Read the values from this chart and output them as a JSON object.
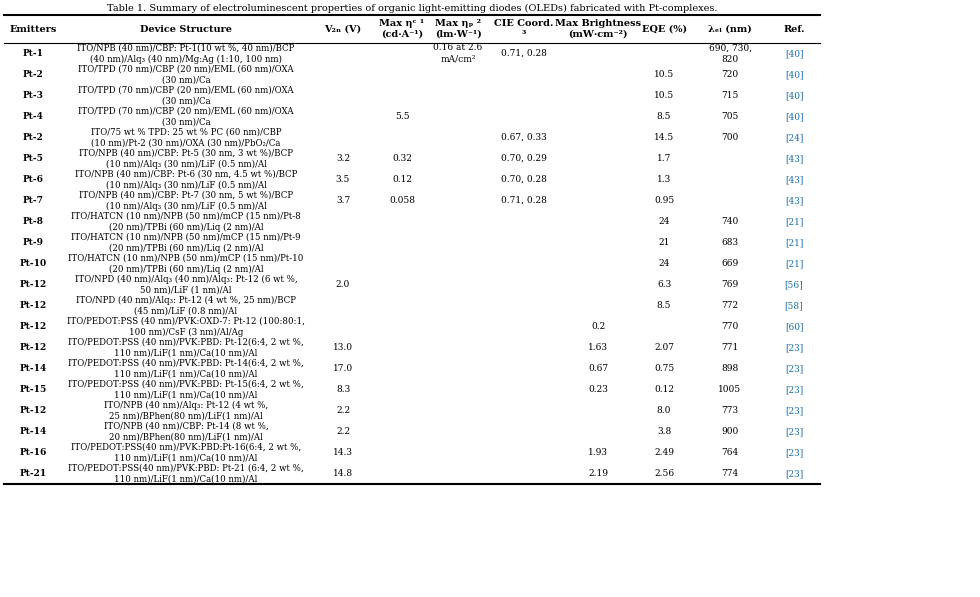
{
  "title": "Table 1. Summary of electroluminescent properties of organic light-emitting diodes (OLEDs) fabricated with Pt-complexes.",
  "rows": [
    {
      "emitter": "Pt-1",
      "device": "ITO/NPB (40 nm)/CBP: Pt-1(10 wt %, 40 nm)/BCP\n(40 nm)/Alq₃ (40 nm)/Mg:Ag (1:10, 100 nm)",
      "device_bold": "Pt-1",
      "von": "",
      "eta_c": "",
      "eta_p": "0.16 at 2.6\nmA/cm²",
      "cie": "0.71, 0.28",
      "brightness": "",
      "eqe": "",
      "lambda": "690, 730,\n820",
      "ref": "[40]"
    },
    {
      "emitter": "Pt-2",
      "device": "ITO/TPD (70 nm)/CBP (20 nm)/EML (60 nm)/OXA\n(30 nm)/Ca",
      "device_bold": "",
      "von": "",
      "eta_c": "",
      "eta_p": "",
      "cie": "",
      "brightness": "",
      "eqe": "10.5",
      "lambda": "720",
      "ref": "[40]"
    },
    {
      "emitter": "Pt-3",
      "device": "ITO/TPD (70 nm)/CBP (20 nm)/EML (60 nm)/OXA\n(30 nm)/Ca",
      "device_bold": "",
      "von": "",
      "eta_c": "",
      "eta_p": "",
      "cie": "",
      "brightness": "",
      "eqe": "10.5",
      "lambda": "715",
      "ref": "[40]"
    },
    {
      "emitter": "Pt-4",
      "device": "ITO/TPD (70 nm)/CBP (20 nm)/EML (60 nm)/OXA\n(30 nm)/Ca",
      "device_bold": "",
      "von": "",
      "eta_c": "5.5",
      "eta_p": "",
      "cie": "",
      "brightness": "",
      "eqe": "8.5",
      "lambda": "705",
      "ref": "[40]"
    },
    {
      "emitter": "Pt-2",
      "device": "ITO/75 wt % TPD: 25 wt % PC (60 nm)/CBP\n(10 nm)/Pt-2 (30 nm)/OXA (30 nm)/PbO₂/Ca",
      "device_bold": "Pt-2",
      "von": "",
      "eta_c": "",
      "eta_p": "",
      "cie": "0.67, 0.33",
      "brightness": "",
      "eqe": "14.5",
      "lambda": "700",
      "ref": "[24]"
    },
    {
      "emitter": "Pt-5",
      "device": "ITO/NPB (40 nm)/CBP: Pt-5 (30 nm, 3 wt %)/BCP\n(10 nm)/Alq₃ (30 nm)/LiF (0.5 nm)/Al",
      "device_bold": "Pt-5",
      "von": "3.2",
      "eta_c": "0.32",
      "eta_p": "",
      "cie": "0.70, 0.29",
      "brightness": "",
      "eqe": "1.7",
      "lambda": "",
      "ref": "[43]"
    },
    {
      "emitter": "Pt-6",
      "device": "ITO/NPB (40 nm)/CBP: Pt-6 (30 nm, 4.5 wt %)/BCP\n(10 nm)/Alq₃ (30 nm)/LiF (0.5 nm)/Al",
      "device_bold": "Pt-6",
      "von": "3.5",
      "eta_c": "0.12",
      "eta_p": "",
      "cie": "0.70, 0.28",
      "brightness": "",
      "eqe": "1.3",
      "lambda": "",
      "ref": "[43]"
    },
    {
      "emitter": "Pt-7",
      "device": "ITO/NPB (40 nm)/CBP: Pt-7 (30 nm, 5 wt %)/BCP\n(10 nm)/Alq₃ (30 nm)/LiF (0.5 nm)/Al",
      "device_bold": "Pt-7",
      "von": "3.7",
      "eta_c": "0.058",
      "eta_p": "",
      "cie": "0.71, 0.28",
      "brightness": "",
      "eqe": "0.95",
      "lambda": "",
      "ref": "[43]"
    },
    {
      "emitter": "Pt-8",
      "device": "ITO/HATCN (10 nm)/NPB (50 nm)/mCP (15 nm)/Pt-8\n(20 nm)/TPBi (60 nm)/Liq (2 nm)/Al",
      "device_bold": "Pt-8",
      "von": "",
      "eta_c": "",
      "eta_p": "",
      "cie": "",
      "brightness": "",
      "eqe": "24",
      "lambda": "740",
      "ref": "[21]"
    },
    {
      "emitter": "Pt-9",
      "device": "ITO/HATCN (10 nm)/NPB (50 nm)/mCP (15 nm)/Pt-9\n(20 nm)/TPBi (60 nm)/Liq (2 nm)/Al",
      "device_bold": "Pt-9",
      "von": "",
      "eta_c": "",
      "eta_p": "",
      "cie": "",
      "brightness": "",
      "eqe": "21",
      "lambda": "683",
      "ref": "[21]"
    },
    {
      "emitter": "Pt-10",
      "device": "ITO/HATCN (10 nm)/NPB (50 nm)/mCP (15 nm)/Pt-10\n(20 nm)/TPBi (60 nm)/Liq (2 nm)/Al",
      "device_bold": "Pt-10",
      "von": "",
      "eta_c": "",
      "eta_p": "",
      "cie": "",
      "brightness": "",
      "eqe": "24",
      "lambda": "669",
      "ref": "[21]"
    },
    {
      "emitter": "Pt-12",
      "device": "ITO/NPD (40 nm)/Alq₃ (40 nm)/Alq₃: Pt-12 (6 wt %,\n50 nm)/LiF (1 nm)/Al",
      "device_bold": "Pt-12",
      "von": "2.0",
      "eta_c": "",
      "eta_p": "",
      "cie": "",
      "brightness": "",
      "eqe": "6.3",
      "lambda": "769",
      "ref": "[56]"
    },
    {
      "emitter": "Pt-12",
      "device": "ITO/NPD (40 nm)/Alq₃: Pt-12 (4 wt %, 25 nm)/BCP\n(45 nm)/LiF (0.8 nm)/Al",
      "device_bold": "Pt-12",
      "von": "",
      "eta_c": "",
      "eta_p": "",
      "cie": "",
      "brightness": "",
      "eqe": "8.5",
      "lambda": "772",
      "ref": "[58]"
    },
    {
      "emitter": "Pt-12",
      "device": "ITO/PEDOT:PSS (40 nm)/PVK:OXD-7: Pt-12 (100:80:1,\n100 nm)/CsF (3 nm)/Al/Ag",
      "device_bold": "Pt-12",
      "von": "",
      "eta_c": "",
      "eta_p": "",
      "cie": "",
      "brightness": "0.2",
      "eqe": "",
      "lambda": "770",
      "ref": "[60]"
    },
    {
      "emitter": "Pt-12",
      "device": "ITO/PEDOT:PSS (40 nm)/PVK:PBD: Pt-12(6:4, 2 wt %,\n110 nm)/LiF(1 nm)/Ca(10 nm)/Al",
      "device_bold": "Pt-12",
      "von": "13.0",
      "eta_c": "",
      "eta_p": "",
      "cie": "",
      "brightness": "1.63",
      "eqe": "2.07",
      "lambda": "771",
      "ref": "[23]"
    },
    {
      "emitter": "Pt-14",
      "device": "ITO/PEDOT:PSS (40 nm)/PVK:PBD: Pt-14(6:4, 2 wt %,\n110 nm)/LiF(1 nm)/Ca(10 nm)/Al",
      "device_bold": "Pt-14",
      "von": "17.0",
      "eta_c": "",
      "eta_p": "",
      "cie": "",
      "brightness": "0.67",
      "eqe": "0.75",
      "lambda": "898",
      "ref": "[23]"
    },
    {
      "emitter": "Pt-15",
      "device": "ITO/PEDOT:PSS (40 nm)/PVK:PBD: Pt-15(6:4, 2 wt %,\n110 nm)/LiF(1 nm)/Ca(10 nm)/Al",
      "device_bold": "Pt-15",
      "von": "8.3",
      "eta_c": "",
      "eta_p": "",
      "cie": "",
      "brightness": "0.23",
      "eqe": "0.12",
      "lambda": "1005",
      "ref": "[23]"
    },
    {
      "emitter": "Pt-12",
      "device": "ITO/NPB (40 nm)/Alq₃: Pt-12 (4 wt %,\n25 nm)/BPhen(80 nm)/LiF(1 nm)/Al",
      "device_bold": "Pt-12",
      "von": "2.2",
      "eta_c": "",
      "eta_p": "",
      "cie": "",
      "brightness": "",
      "eqe": "8.0",
      "lambda": "773",
      "ref": "[23]"
    },
    {
      "emitter": "Pt-14",
      "device": "ITO/NPB (40 nm)/CBP: Pt-14 (8 wt %,\n20 nm)/BPhen(80 nm)/LiF(1 nm)/Al",
      "device_bold": "Pt-14",
      "von": "2.2",
      "eta_c": "",
      "eta_p": "",
      "cie": "",
      "brightness": "",
      "eqe": "3.8",
      "lambda": "900",
      "ref": "[23]"
    },
    {
      "emitter": "Pt-16",
      "device": "ITO/PEDOT:PSS(40 nm)/PVK:PBD:Pt-16(6:4, 2 wt %,\n110 nm)/LiF(1 nm)/Ca(10 nm)/Al",
      "device_bold": "Pt-16",
      "von": "14.3",
      "eta_c": "",
      "eta_p": "",
      "cie": "",
      "brightness": "1.93",
      "eqe": "2.49",
      "lambda": "764",
      "ref": "[23]"
    },
    {
      "emitter": "Pt-21",
      "device": "ITO/PEDOT:PSS(40 nm)/PVK:PBD: Pt-21 (6:4, 2 wt %,\n110 nm)/LiF(1 nm)/Ca(10 nm)/Al",
      "device_bold": "Pt-21",
      "von": "14.8",
      "eta_c": "",
      "eta_p": "",
      "cie": "",
      "brightness": "2.19",
      "eqe": "2.56",
      "lambda": "774",
      "ref": "[23]"
    }
  ],
  "ref_color": "#1a6fa8",
  "font_size": 6.5,
  "header_font_size": 7.0,
  "title_font_size": 7.0
}
